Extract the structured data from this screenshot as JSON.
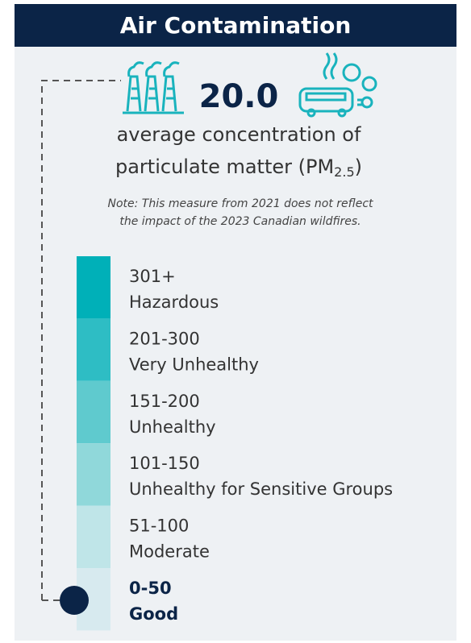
{
  "header": {
    "title": "Air Contamination"
  },
  "measure": {
    "value": "20.0",
    "line1": "average concentration of",
    "line2_prefix": "particulate matter (PM",
    "line2_subscript": "2.5",
    "line2_suffix": ")",
    "note_line1": "Note: This measure from 2021 does not reflect",
    "note_line2": "the impact of the 2023 Canadian wildfires."
  },
  "scale": {
    "levels": [
      {
        "range": "301+",
        "label": "Hazardous",
        "color": "#00b0b8"
      },
      {
        "range": "201-300",
        "label": "Very Unhealthy",
        "color": "#2ebdc4"
      },
      {
        "range": "151-200",
        "label": "Unhealthy",
        "color": "#5fcace"
      },
      {
        "range": "101-150",
        "label": "Unhealthy for Sensitive Groups",
        "color": "#90d8da"
      },
      {
        "range": "51-100",
        "label": "Moderate",
        "color": "#bfe5e8"
      },
      {
        "range": "0-50",
        "label": "Good",
        "color": "#d7eaef"
      }
    ],
    "current_level": 5
  }
}
